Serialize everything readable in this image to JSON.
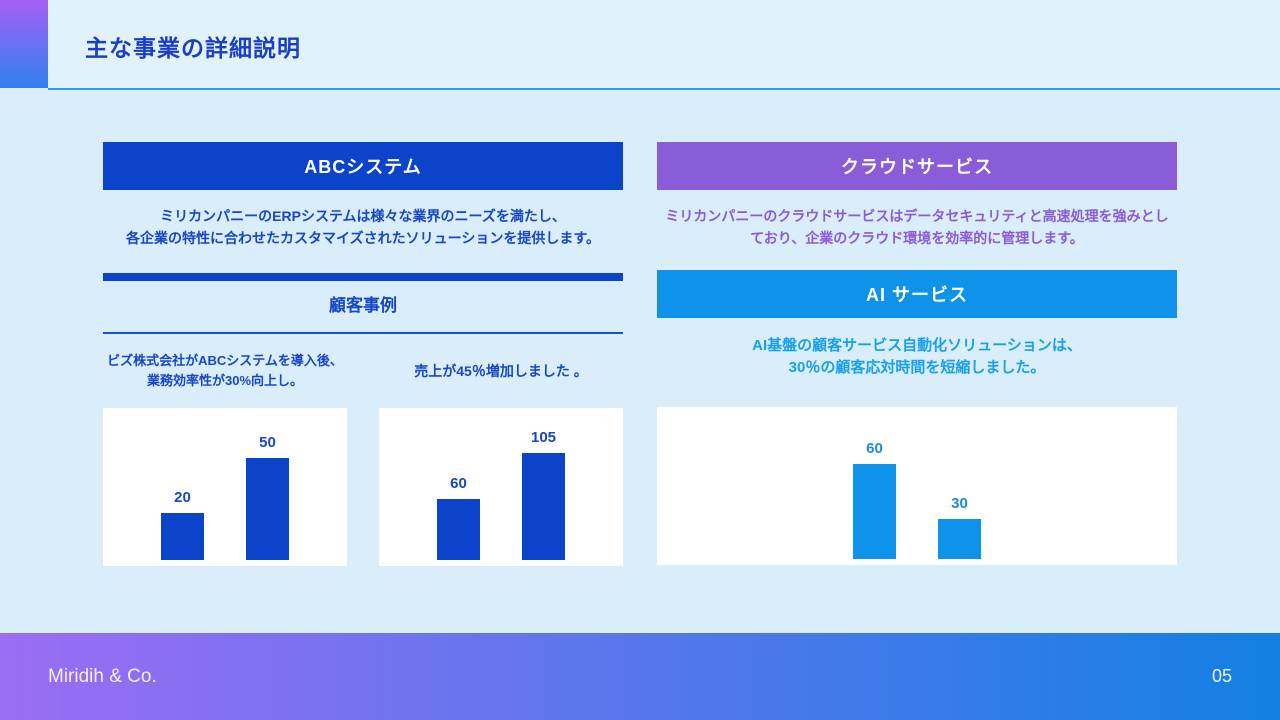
{
  "header": {
    "title": "主な事業の詳細説明"
  },
  "left_column": {
    "banner": "ABCシステム",
    "description": [
      "ミリカンパニーのERPシステムは様々な業界のニーズを満たし、",
      "各企業の特性に合わせたカスタマイズされたソリューションを提供します。"
    ],
    "case_section": {
      "heading": "顧客事例",
      "case1_caption": [
        "ビズ株式会社がABCシステムを導入後、",
        "業務効率性が30%向上し。"
      ],
      "case2_caption": "売上が45％増加しました 。"
    }
  },
  "right_column": {
    "cloud": {
      "banner": "クラウドサービス",
      "description": [
        "ミリカンパニーのクラウドサービスはデータセキュリティと高速処理を強みとし",
        "ており、企業のクラウド環境を効率的に管理します。"
      ]
    },
    "ai": {
      "banner": "AI サービス",
      "description": [
        "AI基盤の顧客サービス自動化ソリューションは、",
        "30％の顧客応対時間を短縮しました。"
      ]
    }
  },
  "chart_data": [
    {
      "type": "bar",
      "values": [
        20,
        50
      ],
      "data_labels": [
        "20",
        "50"
      ],
      "title": "ビズ株式会社がABCシステムを導入後、業務効率性が30%向上し。",
      "bar_color": "#0b44cb",
      "label_color": "#1747c8",
      "grid": false,
      "legend": false,
      "axes_shown": false
    },
    {
      "type": "bar",
      "values": [
        60,
        105
      ],
      "data_labels": [
        "60",
        "105"
      ],
      "title": "売上が45％増加しました 。",
      "bar_color": "#0b44cb",
      "label_color": "#1747c8",
      "grid": false,
      "legend": false,
      "axes_shown": false
    },
    {
      "type": "bar",
      "values": [
        60,
        30
      ],
      "data_labels": [
        "60",
        "30"
      ],
      "title": "AI基盤の顧客サービス自動化ソリューションは、30％の顧客応対時間を短縮しました。",
      "bar_color": "#0f93ea",
      "label_color": "#1b8ade",
      "grid": false,
      "legend": false,
      "axes_shown": false
    }
  ],
  "footer": {
    "company": "Miridih & Co.",
    "page_number": "05"
  },
  "colors": {
    "page_background": "#daedfb",
    "title_text": "#1a3fc4",
    "primary_blue": "#0b44cb",
    "primary_blue_text": "#1747c8",
    "purple": "#8a5cd8",
    "bright_blue": "#0f93ea",
    "bright_blue_text": "#18a0ed",
    "divider_blue": "#2b9fe8",
    "corner_gradient_top": "#a55ff3",
    "corner_gradient_bottom": "#2e82f0",
    "footer_gradient_left": "#9b6df3",
    "footer_gradient_right": "#1380e4"
  }
}
